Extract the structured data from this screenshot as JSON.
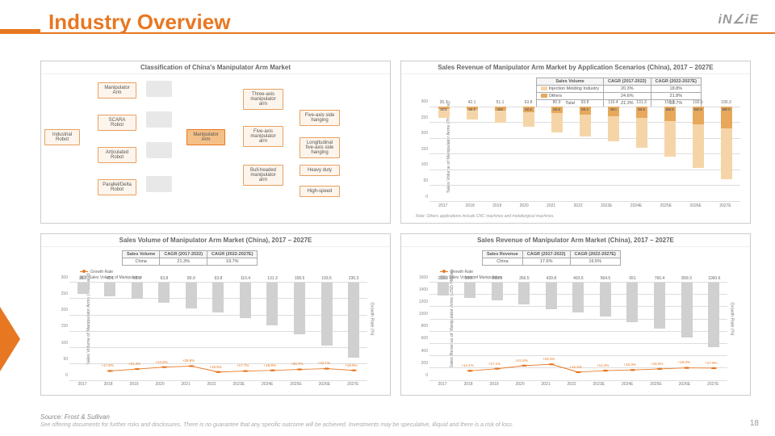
{
  "title": "Industry Overview",
  "logo": "iN∠iE",
  "page_num": "18",
  "source": "Source: Frost & Sullivan",
  "disclaimer": "See offering documents for further risks and disclosures. There is no guarantee that any specific outcome will be achieved. Investments may be speculative, illiquid and there is a risk of loss.",
  "colors": {
    "accent": "#e87722",
    "bar_light": "#f5d5a8",
    "bar_dark": "#e8a85c",
    "bar_gray": "#d0d0d0"
  },
  "panel1": {
    "title": "Classification of China's Manipulator Arm Market",
    "nodes": {
      "industrial": "Industrial Robot",
      "manipulator_arm_top": "Manipulator Arm",
      "scara": "SCARA Robot",
      "articulated": "Articulated Robot",
      "parallel": "Parallel/Delta Robot",
      "center": "Manipulator Arm",
      "three_axis": "Three-axis manipulator arm",
      "five_axis": "Five-axis manipulator arm",
      "bull_headed": "Bull-headed manipulator arm",
      "five_axis_side": "Five-axis side hanging",
      "longitudinal": "Longitudinal five-axis side hanging",
      "heavy": "Heavy duty",
      "high_speed": "High-speed"
    }
  },
  "panel2": {
    "title": "Sales Revenue of Manipulator Arm Market by Application Scenarios (China), 2017 – 2027E",
    "y_label": "Sales Volume of Manipulator Arms (Thousand)",
    "table": {
      "h1": "Sales Volume",
      "h2": "CAGR (2017-2022)",
      "h3": "CAGR (2022-2027E)",
      "r1": [
        "Injection Molding Industry",
        "20.3%",
        "18.8%"
      ],
      "r2": [
        "Others",
        "24.6%",
        "21.8%"
      ],
      "r3": [
        "Total",
        "21.3%",
        "19.7%"
      ]
    },
    "y_ticks": [
      0,
      50,
      100,
      150,
      200,
      250,
      300
    ],
    "y_max": 300,
    "years": [
      "2017",
      "2018",
      "2019",
      "2020",
      "2021",
      "2022",
      "2023E",
      "2024E",
      "2025E",
      "2026E",
      "2027E"
    ],
    "totals": [
      35.7,
      42.1,
      51.1,
      63.8,
      80.9,
      93.8,
      110.4,
      131.3,
      158.5,
      193.5,
      230.3
    ],
    "top_seg": [
      8.5,
      10.4,
      13.0,
      16.6,
      21.4,
      25.4,
      30.4,
      36.9,
      45.3,
      56.3,
      68.1
    ],
    "bot_seg": [
      27.2,
      31.7,
      38.1,
      47.2,
      59.5,
      68.4,
      80.0,
      94.4,
      113.2,
      137.2,
      162.2
    ],
    "note": "Note: Others applications include CNC machines and metallurgical machines."
  },
  "panel3": {
    "title": "Sales Volume of Manipulator Arm Market (China), 2017 – 2027E",
    "y_label": "Sales Volume of Manipulator Arms (Thousand)",
    "y_label_right": "Growth Rate (%)",
    "legend": {
      "growth": "Growth Rate",
      "bars": "Sales Volume of Manipulators"
    },
    "table": {
      "h1": "Sales Volume",
      "h2": "CAGR (2017-2022)",
      "h3": "CAGR (2022-2027E)",
      "r1": [
        "China",
        "21.3%",
        "19.7%"
      ]
    },
    "y_ticks": [
      0,
      50,
      100,
      150,
      200,
      250,
      300
    ],
    "y_max": 300,
    "y_ticks_right": [
      0,
      20,
      40,
      60,
      80,
      100,
      120,
      140,
      160,
      180
    ],
    "years": [
      "2017",
      "2018",
      "2019",
      "2020",
      "2021",
      "2022",
      "2023E",
      "2024E",
      "2025E",
      "2026E",
      "2027E"
    ],
    "values": [
      35.7,
      42.1,
      51.1,
      63.8,
      80.9,
      93.8,
      110.4,
      131.3,
      158.5,
      193.5,
      230.3
    ],
    "growth": [
      null,
      17.9,
      21.4,
      24.9,
      26.8,
      15.9,
      17.7,
      18.9,
      20.7,
      22.1,
      19.0
    ],
    "growth_labels": [
      "+17.9%",
      "+21.4%",
      "+24.9%",
      "+26.8%",
      "+15.9%",
      "+17.7%",
      "+18.9%",
      "+20.7%",
      "+22.1%",
      "+19.0%"
    ]
  },
  "panel4": {
    "title": "Sales Revenue of Manipulator Arm Market (China), 2017 – 2027E",
    "y_label": "Sales Revenue of Manipulator Arms (USD Million)",
    "y_label_right": "Growth Rate (%)",
    "legend": {
      "growth": "Growth Rate",
      "bars": "Sales Volume of Manipulators"
    },
    "table": {
      "h1": "Sales Revenue",
      "h2": "CAGR (2017-2022)",
      "h3": "CAGR (2022-2027E)",
      "r1": [
        "China",
        "17.6%",
        "16.5%"
      ]
    },
    "y_ticks": [
      0,
      200,
      400,
      600,
      800,
      1000,
      1200,
      1400,
      1600
    ],
    "y_max": 1600,
    "y_ticks_right": [
      0,
      20,
      40,
      60,
      80,
      100,
      120,
      140
    ],
    "years": [
      "2017",
      "2018",
      "2019",
      "2020",
      "2021",
      "2022",
      "2023E",
      "2024E",
      "2025E",
      "2026E",
      "2027E"
    ],
    "values": [
      219.8,
      250.7,
      293.5,
      356.5,
      439.8,
      493.5,
      564.5,
      651.0,
      760.4,
      899.3,
      1060.6
    ],
    "growth": [
      null,
      14.1,
      17.1,
      21.5,
      23.4,
      12.2,
      14.4,
      15.3,
      16.8,
      18.3,
      17.9
    ],
    "growth_labels": [
      "+14.1%",
      "+17.1%",
      "+21.5%",
      "+23.4%",
      "+12.2%",
      "+14.4%",
      "+15.3%",
      "+16.8%",
      "+18.3%",
      "+17.9%"
    ]
  }
}
